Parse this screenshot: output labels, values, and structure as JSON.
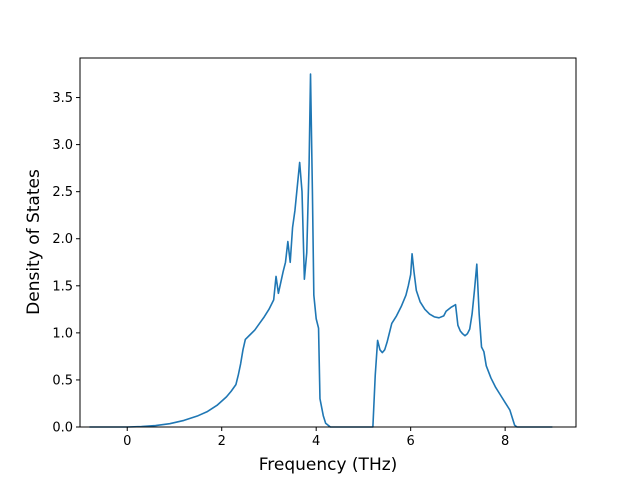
{
  "chart_data": {
    "type": "line",
    "title": "",
    "xlabel": "Frequency (THz)",
    "ylabel": "Density of States",
    "xlim": [
      -1.0,
      9.5
    ],
    "ylim": [
      0.0,
      3.92
    ],
    "grid": false,
    "legend": "none",
    "xticks": [
      0,
      2,
      4,
      6,
      8
    ],
    "xtick_labels": [
      "0",
      "2",
      "4",
      "6",
      "8"
    ],
    "yticks": [
      0.0,
      0.5,
      1.0,
      1.5,
      2.0,
      2.5,
      3.0,
      3.5
    ],
    "ytick_labels": [
      "0.0",
      "0.5",
      "1.0",
      "1.5",
      "2.0",
      "2.5",
      "3.0",
      "3.5"
    ],
    "series": [
      {
        "color": "#1f77b4",
        "points": [
          [
            -0.8,
            0.0
          ],
          [
            0.0,
            0.0
          ],
          [
            0.3,
            0.005
          ],
          [
            0.6,
            0.015
          ],
          [
            0.9,
            0.035
          ],
          [
            1.2,
            0.07
          ],
          [
            1.5,
            0.12
          ],
          [
            1.7,
            0.165
          ],
          [
            1.9,
            0.23
          ],
          [
            2.1,
            0.32
          ],
          [
            2.2,
            0.38
          ],
          [
            2.3,
            0.45
          ],
          [
            2.35,
            0.55
          ],
          [
            2.4,
            0.67
          ],
          [
            2.45,
            0.82
          ],
          [
            2.5,
            0.93
          ],
          [
            2.6,
            0.98
          ],
          [
            2.7,
            1.03
          ],
          [
            2.8,
            1.1
          ],
          [
            2.9,
            1.17
          ],
          [
            3.0,
            1.25
          ],
          [
            3.1,
            1.35
          ],
          [
            3.15,
            1.6
          ],
          [
            3.2,
            1.42
          ],
          [
            3.3,
            1.65
          ],
          [
            3.35,
            1.75
          ],
          [
            3.4,
            1.97
          ],
          [
            3.45,
            1.75
          ],
          [
            3.5,
            2.12
          ],
          [
            3.55,
            2.3
          ],
          [
            3.65,
            2.81
          ],
          [
            3.7,
            2.5
          ],
          [
            3.75,
            1.57
          ],
          [
            3.8,
            1.85
          ],
          [
            3.85,
            2.8
          ],
          [
            3.88,
            3.75
          ],
          [
            3.92,
            2.5
          ],
          [
            3.95,
            1.4
          ],
          [
            4.0,
            1.15
          ],
          [
            4.05,
            1.05
          ],
          [
            4.08,
            0.3
          ],
          [
            4.15,
            0.12
          ],
          [
            4.2,
            0.04
          ],
          [
            4.3,
            0.0
          ],
          [
            5.2,
            0.0
          ],
          [
            5.25,
            0.55
          ],
          [
            5.3,
            0.92
          ],
          [
            5.35,
            0.82
          ],
          [
            5.4,
            0.79
          ],
          [
            5.45,
            0.82
          ],
          [
            5.5,
            0.9
          ],
          [
            5.55,
            1.0
          ],
          [
            5.6,
            1.1
          ],
          [
            5.7,
            1.18
          ],
          [
            5.8,
            1.28
          ],
          [
            5.9,
            1.4
          ],
          [
            5.95,
            1.5
          ],
          [
            6.0,
            1.62
          ],
          [
            6.03,
            1.84
          ],
          [
            6.07,
            1.65
          ],
          [
            6.12,
            1.45
          ],
          [
            6.2,
            1.33
          ],
          [
            6.3,
            1.25
          ],
          [
            6.4,
            1.2
          ],
          [
            6.5,
            1.17
          ],
          [
            6.6,
            1.16
          ],
          [
            6.7,
            1.18
          ],
          [
            6.75,
            1.23
          ],
          [
            6.85,
            1.27
          ],
          [
            6.95,
            1.3
          ],
          [
            7.0,
            1.08
          ],
          [
            7.05,
            1.02
          ],
          [
            7.1,
            0.99
          ],
          [
            7.15,
            0.97
          ],
          [
            7.2,
            0.99
          ],
          [
            7.25,
            1.04
          ],
          [
            7.3,
            1.2
          ],
          [
            7.35,
            1.45
          ],
          [
            7.4,
            1.73
          ],
          [
            7.45,
            1.2
          ],
          [
            7.5,
            0.85
          ],
          [
            7.55,
            0.8
          ],
          [
            7.6,
            0.65
          ],
          [
            7.7,
            0.52
          ],
          [
            7.8,
            0.42
          ],
          [
            7.9,
            0.34
          ],
          [
            8.0,
            0.26
          ],
          [
            8.1,
            0.18
          ],
          [
            8.15,
            0.1
          ],
          [
            8.2,
            0.02
          ],
          [
            8.25,
            0.0
          ],
          [
            9.0,
            0.0
          ]
        ]
      }
    ]
  }
}
